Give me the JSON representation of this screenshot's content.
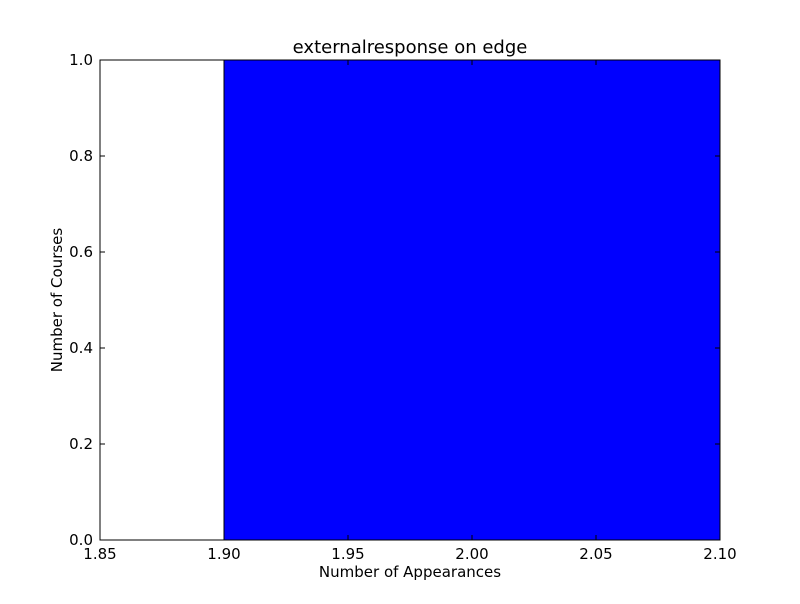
{
  "chart_data": {
    "type": "bar",
    "title": "externalresponse on edge",
    "xlabel": "Number of Appearances",
    "ylabel": "Number of Courses",
    "xlim": [
      1.85,
      2.1
    ],
    "ylim": [
      0.0,
      1.0
    ],
    "xticks": [
      1.85,
      1.9,
      1.95,
      2.0,
      2.05,
      2.1
    ],
    "xtick_labels": [
      "1.85",
      "1.90",
      "1.95",
      "2.00",
      "2.05",
      "2.10"
    ],
    "yticks": [
      0.0,
      0.2,
      0.4,
      0.6,
      0.8,
      1.0
    ],
    "ytick_labels": [
      "0.0",
      "0.2",
      "0.4",
      "0.6",
      "0.8",
      "1.0"
    ],
    "bars": [
      {
        "x_start": 1.9,
        "x_end": 2.1,
        "value": 1.0
      }
    ],
    "bar_color": "#0000ff",
    "grid": false,
    "legend": "none"
  }
}
